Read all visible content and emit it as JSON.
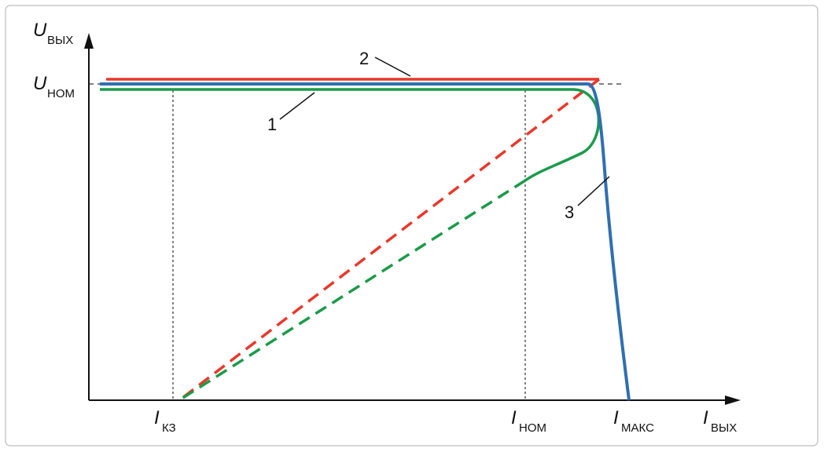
{
  "axes": {
    "y": {
      "symbol": "U",
      "subscript": "ВЫХ"
    },
    "x": {
      "symbol": "I",
      "subscript": "ВЫХ"
    }
  },
  "levels": {
    "u_nom": {
      "symbol": "U",
      "subscript": "НОМ"
    }
  },
  "x_marks": [
    {
      "symbol": "I",
      "subscript": "КЗ"
    },
    {
      "symbol": "I",
      "subscript": "НОМ"
    },
    {
      "symbol": "I",
      "subscript": "МАКС"
    }
  ],
  "curve_labels": [
    "1",
    "2",
    "3"
  ]
}
